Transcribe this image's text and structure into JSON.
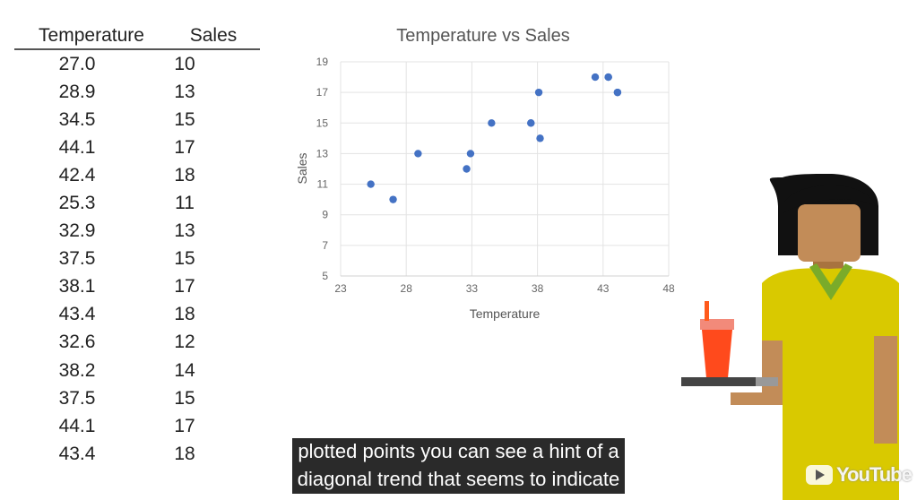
{
  "table": {
    "headers": [
      "Temperature",
      "Sales"
    ],
    "rows": [
      [
        "27.0",
        "10"
      ],
      [
        "28.9",
        "13"
      ],
      [
        "34.5",
        "15"
      ],
      [
        "44.1",
        "17"
      ],
      [
        "42.4",
        "18"
      ],
      [
        "25.3",
        "11"
      ],
      [
        "32.9",
        "13"
      ],
      [
        "37.5",
        "15"
      ],
      [
        "38.1",
        "17"
      ],
      [
        "43.4",
        "18"
      ],
      [
        "32.6",
        "12"
      ],
      [
        "38.2",
        "14"
      ],
      [
        "37.5",
        "15"
      ],
      [
        "44.1",
        "17"
      ],
      [
        "43.4",
        "18"
      ]
    ]
  },
  "chart_data": {
    "type": "scatter",
    "title": "Temperature vs Sales",
    "xlabel": "Temperature",
    "ylabel": "Sales",
    "xlim": [
      23,
      48
    ],
    "ylim": [
      5,
      19
    ],
    "xticks": [
      23,
      28,
      33,
      38,
      43,
      48
    ],
    "yticks": [
      5,
      7,
      9,
      11,
      13,
      15,
      17,
      19
    ],
    "grid": true,
    "point_color": "#4472c4",
    "points": [
      {
        "x": 27.0,
        "y": 10
      },
      {
        "x": 28.9,
        "y": 13
      },
      {
        "x": 34.5,
        "y": 15
      },
      {
        "x": 44.1,
        "y": 17
      },
      {
        "x": 42.4,
        "y": 18
      },
      {
        "x": 25.3,
        "y": 11
      },
      {
        "x": 32.9,
        "y": 13
      },
      {
        "x": 37.5,
        "y": 15
      },
      {
        "x": 38.1,
        "y": 17
      },
      {
        "x": 43.4,
        "y": 18
      },
      {
        "x": 32.6,
        "y": 12
      },
      {
        "x": 38.2,
        "y": 14
      },
      {
        "x": 37.5,
        "y": 15
      },
      {
        "x": 44.1,
        "y": 17
      },
      {
        "x": 43.4,
        "y": 18
      }
    ]
  },
  "captions": {
    "line1": "plotted points you can see a hint of a",
    "line2": "diagonal trend that seems to indicate"
  },
  "watermark": {
    "icon": "play-icon",
    "text": "YouTube"
  },
  "illustration": {
    "name": "person-holding-drink-tray",
    "colors": {
      "shirt": "#d9c900",
      "collar": "#7aab2a",
      "skin": "#c28c58",
      "hair": "#111111",
      "cup": "#ff4a1c",
      "tray": "#444444"
    }
  }
}
